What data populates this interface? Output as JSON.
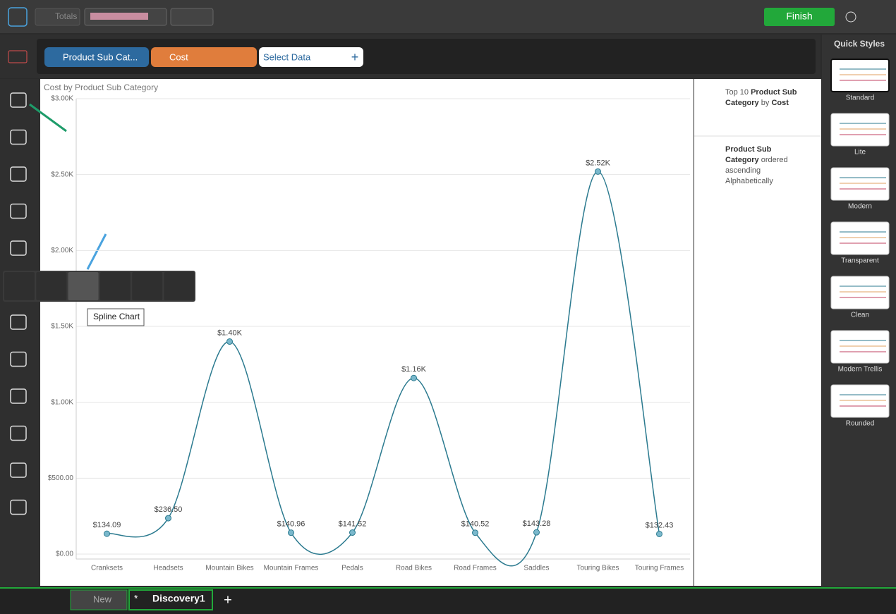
{
  "toolbar": {
    "totals": "Totals",
    "finish": "Finish"
  },
  "data_bar": {
    "pills": [
      "Product Sub Cat...",
      "Cost"
    ],
    "select": "Select Data"
  },
  "flyout": {
    "tooltip": "Spline Chart"
  },
  "panel": {
    "filter": {
      "text1": "Top 10",
      "field": "Product Sub Category",
      "text2": "by",
      "measure": "Cost"
    },
    "sort": {
      "field": "Product Sub Category",
      "text": "ordered ascending Alphabetically"
    }
  },
  "quick_styles": {
    "title": "Quick Styles",
    "styles": [
      "Standard",
      "Lite",
      "Modern",
      "Transparent",
      "Clean",
      "Modern Trellis",
      "Rounded"
    ]
  },
  "tabs": {
    "new": "New",
    "modified": "*",
    "current": "Discovery1"
  },
  "chart_data": {
    "type": "spline",
    "title": "Cost by Product Sub Category",
    "color": "#2b7a8f",
    "grid": true,
    "categories": [
      "Cranksets",
      "Headsets",
      "Mountain Bikes",
      "Mountain Frames",
      "Pedals",
      "Road Bikes",
      "Road Frames",
      "Saddles",
      "Touring Bikes",
      "Touring Frames"
    ],
    "values": [
      134.09,
      236.5,
      1400,
      140.96,
      141.52,
      1160,
      140.52,
      143.28,
      2520,
      132.43
    ],
    "value_labels": [
      "$134.09",
      "$236.50",
      "$1.40K",
      "$140.96",
      "$141.52",
      "$1.16K",
      "$140.52",
      "$143.28",
      "$2.52K",
      "$132.43"
    ],
    "ylim": [
      0,
      3000
    ],
    "yticks": [
      {
        "value": 0,
        "label": "$0.00"
      },
      {
        "value": 500,
        "label": "$500.00"
      },
      {
        "value": 1000,
        "label": "$1.00K"
      },
      {
        "value": 1500,
        "label": "$1.50K"
      },
      {
        "value": 2000,
        "label": "$2.00K"
      },
      {
        "value": 2500,
        "label": "$2.50K"
      },
      {
        "value": 3000,
        "label": "$3.00K"
      }
    ]
  }
}
